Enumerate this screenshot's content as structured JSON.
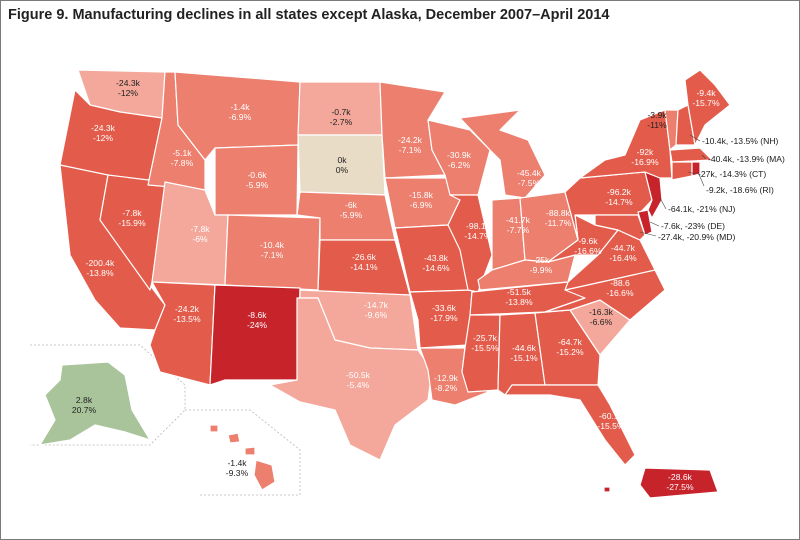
{
  "title": "Figure 9. Manufacturing declines in all states except Alaska, December 2007–April 2014",
  "colors": {
    "background": "#ffffff",
    "gain": "#a9c49b",
    "zero": "#e9dcc6",
    "light": "#f3a89b",
    "medium": "#ec7f6e",
    "strong": "#e35b4a",
    "darkest": "#c6232b"
  },
  "states": {
    "WA": {
      "change": "-24.3k",
      "pct": "-12%"
    },
    "OR": {
      "change": "-24.3k",
      "pct": "-12%"
    },
    "CA": {
      "change": "-200.4k",
      "pct": "-13.8%"
    },
    "NV": {
      "change": "-7.8k",
      "pct": "-15.9%"
    },
    "ID": {
      "change": "-5.1k",
      "pct": "-7.8%"
    },
    "MT": {
      "change": "-1.4k",
      "pct": "-6.9%"
    },
    "WY": {
      "change": "-0.6k",
      "pct": "-5.9%"
    },
    "UT": {
      "change": "-7.8k",
      "pct": "-6%"
    },
    "AZ": {
      "change": "-24.2k",
      "pct": "-13.5%"
    },
    "CO": {
      "change": "-10.4k",
      "pct": "-7.1%"
    },
    "NM": {
      "change": "-8.6k",
      "pct": "-24%"
    },
    "ND": {
      "change": "-0.7k",
      "pct": "-2.7%"
    },
    "SD": {
      "change": "0k",
      "pct": "0%"
    },
    "NE": {
      "change": "-6k",
      "pct": "-5.9%"
    },
    "KS": {
      "change": "-26.6k",
      "pct": "-14.1%"
    },
    "OK": {
      "change": "-14.7k",
      "pct": "-9.6%"
    },
    "TX": {
      "change": "-50.5k",
      "pct": "-5.4%"
    },
    "MN": {
      "change": "-24.2k",
      "pct": "-7.1%"
    },
    "IA": {
      "change": "-15.8k",
      "pct": "-6.9%"
    },
    "MO": {
      "change": "-43.8k",
      "pct": "-14.6%"
    },
    "AR": {
      "change": "-33.6k",
      "pct": "-17.9%"
    },
    "LA": {
      "change": "-12.9k",
      "pct": "-8.2%"
    },
    "WI": {
      "change": "-30.9k",
      "pct": "-6.2%"
    },
    "IL": {
      "change": "-98.1k",
      "pct": "-14.7%"
    },
    "MI": {
      "change": "-45.4k",
      "pct": "-7.5%"
    },
    "IN": {
      "change": "-41.7k",
      "pct": "-7.7%"
    },
    "OH": {
      "change": "-88.8k",
      "pct": "-11.7%"
    },
    "KY": {
      "change": "-25k",
      "pct": "-9.9%"
    },
    "TN": {
      "change": "-51.5k",
      "pct": "-13.8%"
    },
    "MS": {
      "change": "-25.7k",
      "pct": "-15.5%"
    },
    "AL": {
      "change": "-44.6k",
      "pct": "-15.1%"
    },
    "GA": {
      "change": "-64.7k",
      "pct": "-15.2%"
    },
    "FL": {
      "change": "-60.1k",
      "pct": "-15.5%"
    },
    "SC": {
      "change": "-16.3k",
      "pct": "-6.6%"
    },
    "NC": {
      "change": "-88.6",
      "pct": "-16.6%"
    },
    "VA": {
      "change": "-44.7k",
      "pct": "-16.4%"
    },
    "WV": {
      "change": "-9.6k",
      "pct": "-16.6%"
    },
    "PA": {
      "change": "-96.2k",
      "pct": "-14.7%"
    },
    "NY": {
      "change": "-92k",
      "pct": "-16.9%"
    },
    "VT": {
      "change": "-3.9k",
      "pct": "-11%"
    },
    "ME": {
      "change": "-9.4k",
      "pct": "-15.7%"
    },
    "AK": {
      "change": "2.8k",
      "pct": "20.7%"
    },
    "HI": {
      "change": "-1.4k",
      "pct": "-9.3%"
    },
    "PR": {
      "change": "-28.6k",
      "pct": "-27.5%"
    }
  },
  "external_labels": {
    "NH": "-10.4k, -13.5% (NH)",
    "MA": "-40.4k, -13.9% (MA)",
    "CT": "-27k, -14.3% (CT)",
    "RI": "-9.2k, -18.6% (RI)",
    "NJ": "-64.1k, -21% (NJ)",
    "DE": "-7.6k, -23% (DE)",
    "MD": "-27.4k, -20.9% (MD)"
  }
}
